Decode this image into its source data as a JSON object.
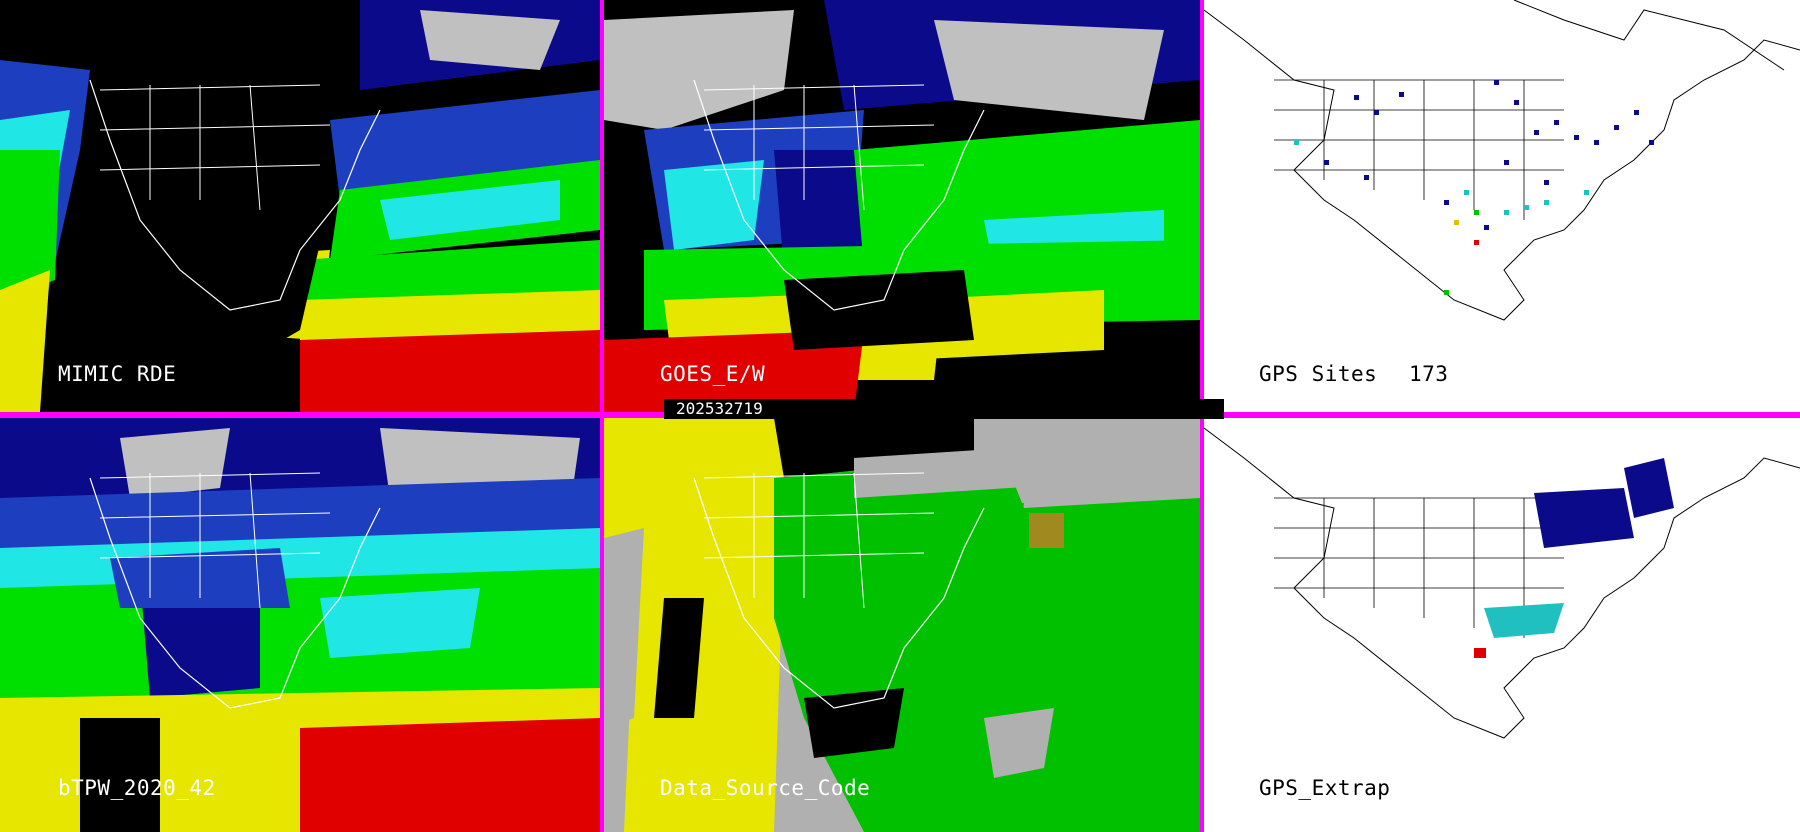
{
  "panels": [
    {
      "id": "mimic",
      "label": "MIMIC RDE",
      "theme": "dark"
    },
    {
      "id": "goes",
      "label": "GOES_E/W",
      "theme": "dark"
    },
    {
      "id": "gps-sites",
      "label": "GPS Sites",
      "count": "173",
      "theme": "light"
    },
    {
      "id": "btpw",
      "label": "bTPW_2020_42",
      "theme": "dark"
    },
    {
      "id": "data-source",
      "label": "Data_Source_Code",
      "theme": "dark"
    },
    {
      "id": "gps-extrap",
      "label": "GPS_Extrap",
      "theme": "light"
    }
  ],
  "timestamp": "202532719",
  "colors": {
    "divider": "#ff00ff",
    "tpw_dry": "#0a0a8a",
    "tpw_low": "#1d3fbf",
    "tpw_mid": "#20e6e6",
    "tpw_moist": "#00e000",
    "tpw_wet": "#e6e600",
    "tpw_very_wet": "#e00000",
    "cloud": "#c0c0c0",
    "source_gray": "#b0b0b0",
    "source_yellow": "#e6e600",
    "source_green": "#00c000",
    "source_olive": "#a08a20"
  }
}
